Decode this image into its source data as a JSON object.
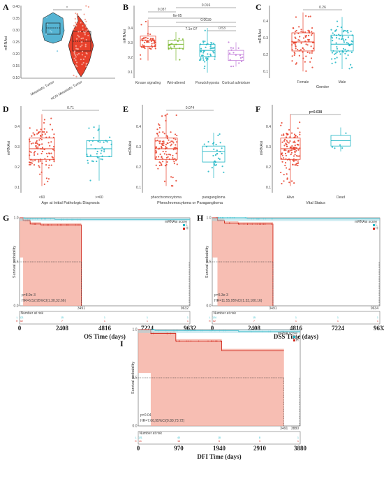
{
  "panels": {
    "A": {
      "letter": "A",
      "ylabel": "mRNAsi",
      "categories": [
        "Metastatic Tumor",
        "NON Metastatic Tumor"
      ],
      "yticks": [
        "0.10",
        "0.15",
        "0.20",
        "0.25",
        "0.30",
        "0.35",
        "0.40"
      ],
      "sig": "*"
    },
    "B": {
      "letter": "B",
      "ylabel": "mRNAsi",
      "categories": [
        "Kinase signaling",
        "Wnt-altered",
        "Pseudohypoxia",
        "Cortical admixture"
      ],
      "yticks": [
        "0.1",
        "0.2",
        "0.3",
        "0.4"
      ],
      "pvals": [
        "0.037",
        "6e-05",
        "0.016",
        "0.0039",
        "7.1e-07",
        "0.53"
      ]
    },
    "C": {
      "letter": "C",
      "ylabel": "mRNAsi",
      "xlabel": "Gender",
      "categories": [
        "Female",
        "Male"
      ],
      "yticks": [
        "0.1",
        "0.2",
        "0.3",
        "0.4"
      ],
      "pval": "0.26"
    },
    "D": {
      "letter": "D",
      "ylabel": "mRNAsi",
      "xlabel": "Age at Initial Pathologic Diagnosis",
      "categories": [
        "<60",
        ">=60"
      ],
      "yticks": [
        "0.1",
        "0.2",
        "0.3",
        "0.4"
      ],
      "pval": "0.71"
    },
    "E": {
      "letter": "E",
      "ylabel": "mRNAsi",
      "xlabel": "Pheochromocytoma or Paraganglioma",
      "categories": [
        "pheochromocytoma",
        "paraganglioma"
      ],
      "yticks": [
        "0.1",
        "0.2",
        "0.3",
        "0.4"
      ],
      "pval": "0.074"
    },
    "F": {
      "letter": "F",
      "ylabel": "mRNAsi",
      "xlabel": "Vital Status",
      "categories": [
        "Alive",
        "Dead"
      ],
      "yticks": [
        "0.1",
        "0.2",
        "0.3",
        "0.4"
      ],
      "pval": "p=0.038"
    },
    "G": {
      "letter": "G",
      "ylabel": "Survival probability",
      "xtitle": "OS Time (days)",
      "xticks": [
        "0",
        "2408",
        "4816",
        "7224",
        "9632"
      ],
      "legend_title": "mRNAsi score",
      "legend": [
        "L",
        "H"
      ],
      "pval": "p=8.9e-3",
      "hr": "HR=6.52,95%CI(1.30,32.66)",
      "risk_title": "Number at risk",
      "risk_L": [
        "121",
        "15",
        "1",
        "1",
        "1"
      ],
      "risk_H": [
        "62",
        "7",
        "1",
        "1",
        "1"
      ],
      "median_L": "3491",
      "median_end": "9632"
    },
    "H": {
      "letter": "H",
      "ylabel": "Survival probability",
      "xtitle": "DSS Time (days)",
      "xticks": [
        "0",
        "2408",
        "4816",
        "7224",
        "9632"
      ],
      "legend_title": "mRNAsi score",
      "legend": [
        "L",
        "H"
      ],
      "pval": "p=5.3e-3",
      "hr": "HR=11.55,95%CI(1.33,100.16)",
      "risk_title": "Number at risk",
      "risk_L": [
        "124",
        "15",
        "1",
        "1",
        "1"
      ],
      "risk_H": [
        "62",
        "7",
        "1",
        "1",
        "1"
      ],
      "median_L": "3491",
      "median_end": "9634"
    },
    "I": {
      "letter": "I",
      "ylabel": "Survival probability",
      "xtitle": "DFI Time (days)",
      "xticks": [
        "0",
        "970",
        "1940",
        "2910",
        "3880"
      ],
      "legend_title": "mRNA score",
      "legend": [
        "L",
        "H"
      ],
      "pval": "p=0.04",
      "hr": "HR=7.66,95%CI(0.80,73.72)",
      "risk_title": "Number at risk",
      "risk_L": [
        "121",
        "40",
        "18",
        "8",
        "1"
      ],
      "risk_H": [
        "41",
        "16",
        "6",
        "3",
        "1"
      ],
      "median_L": "3491",
      "median_end": "3880"
    }
  },
  "chart_data": [
    {
      "panel": "A",
      "type": "box",
      "categories": [
        "Metastatic Tumor",
        "NON Metastatic Tumor"
      ],
      "ylim": [
        0.1,
        0.4
      ],
      "series": [
        {
          "name": "Metastatic Tumor",
          "q1": 0.28,
          "median": 0.31,
          "q3": 0.34,
          "min": 0.23,
          "max": 0.37
        },
        {
          "name": "NON Metastatic Tumor",
          "q1": 0.22,
          "median": 0.26,
          "q3": 0.3,
          "min": 0.12,
          "max": 0.39
        }
      ]
    },
    {
      "panel": "B",
      "type": "box",
      "categories": [
        "Kinase signaling",
        "Wnt-altered",
        "Pseudohypoxia",
        "Cortical admixture"
      ],
      "ylim": [
        0.1,
        0.45
      ],
      "series": [
        {
          "name": "Kinase signaling",
          "q1": 0.25,
          "median": 0.28,
          "q3": 0.3,
          "min": 0.18,
          "max": 0.38
        },
        {
          "name": "Wnt-altered",
          "q1": 0.24,
          "median": 0.26,
          "q3": 0.28,
          "min": 0.18,
          "max": 0.32
        },
        {
          "name": "Pseudohypoxia",
          "q1": 0.2,
          "median": 0.23,
          "q3": 0.26,
          "min": 0.12,
          "max": 0.34
        },
        {
          "name": "Cortical admixture",
          "q1": 0.18,
          "median": 0.21,
          "q3": 0.23,
          "min": 0.15,
          "max": 0.27
        }
      ]
    },
    {
      "panel": "C",
      "type": "box",
      "categories": [
        "Female",
        "Male"
      ],
      "ylim": [
        0.1,
        0.42
      ],
      "series": [
        {
          "name": "Female",
          "q1": 0.22,
          "median": 0.26,
          "q3": 0.3,
          "min": 0.13,
          "max": 0.39
        },
        {
          "name": "Male",
          "q1": 0.22,
          "median": 0.25,
          "q3": 0.29,
          "min": 0.14,
          "max": 0.37
        }
      ]
    },
    {
      "panel": "D",
      "type": "box",
      "categories": [
        "<60",
        ">=60"
      ],
      "ylim": [
        0.1,
        0.42
      ],
      "series": [
        {
          "name": "<60",
          "q1": 0.22,
          "median": 0.26,
          "q3": 0.3,
          "min": 0.12,
          "max": 0.39
        },
        {
          "name": ">=60",
          "q1": 0.23,
          "median": 0.26,
          "q3": 0.29,
          "min": 0.14,
          "max": 0.35
        }
      ]
    },
    {
      "panel": "E",
      "type": "box",
      "categories": [
        "pheochromocytoma",
        "paraganglioma"
      ],
      "ylim": [
        0.1,
        0.42
      ],
      "series": [
        {
          "name": "pheochromocytoma",
          "q1": 0.22,
          "median": 0.26,
          "q3": 0.3,
          "min": 0.12,
          "max": 0.39
        },
        {
          "name": "paraganglioma",
          "q1": 0.21,
          "median": 0.25,
          "q3": 0.27,
          "min": 0.15,
          "max": 0.32
        }
      ]
    },
    {
      "panel": "F",
      "type": "box",
      "categories": [
        "Alive",
        "Dead"
      ],
      "ylim": [
        0.1,
        0.42
      ],
      "series": [
        {
          "name": "Alive",
          "q1": 0.22,
          "median": 0.26,
          "q3": 0.3,
          "min": 0.12,
          "max": 0.39
        },
        {
          "name": "Dead",
          "q1": 0.27,
          "median": 0.29,
          "q3": 0.31,
          "min": 0.25,
          "max": 0.34
        }
      ]
    },
    {
      "panel": "G",
      "type": "line",
      "xlabel": "OS Time (days)",
      "ylabel": "Survival probability",
      "xlim": [
        0,
        9632
      ],
      "ylim": [
        0,
        1
      ],
      "series": [
        {
          "name": "L",
          "x": [
            0,
            300,
            1000,
            2000,
            3491,
            9632
          ],
          "y": [
            1,
            0.99,
            0.99,
            0.98,
            0.98,
            0.98
          ]
        },
        {
          "name": "H",
          "x": [
            0,
            200,
            600,
            1200,
            3491,
            3491
          ],
          "y": [
            1,
            0.97,
            0.93,
            0.92,
            0.92,
            0
          ]
        }
      ]
    },
    {
      "panel": "H",
      "type": "line",
      "xlabel": "DSS Time (days)",
      "ylabel": "Survival probability",
      "xlim": [
        0,
        9634
      ],
      "ylim": [
        0,
        1
      ],
      "series": [
        {
          "name": "L",
          "x": [
            0,
            500,
            2000,
            3491,
            9634
          ],
          "y": [
            1,
            1,
            0.99,
            0.99,
            0.99
          ]
        },
        {
          "name": "H",
          "x": [
            0,
            300,
            700,
            1500,
            3491,
            3491
          ],
          "y": [
            1,
            0.97,
            0.94,
            0.93,
            0.93,
            0
          ]
        }
      ]
    },
    {
      "panel": "I",
      "type": "line",
      "xlabel": "DFI Time (days)",
      "ylabel": "Survival probability",
      "xlim": [
        0,
        3880
      ],
      "ylim": [
        0,
        1
      ],
      "series": [
        {
          "name": "L",
          "x": [
            0,
            400,
            1200,
            2400,
            3491,
            3880
          ],
          "y": [
            1,
            0.99,
            0.99,
            0.98,
            0.98,
            0.98
          ]
        },
        {
          "name": "H",
          "x": [
            0,
            300,
            900,
            1900,
            2000,
            3491
          ],
          "y": [
            1,
            0.96,
            0.88,
            0.88,
            0.78,
            0.78
          ]
        }
      ]
    }
  ]
}
